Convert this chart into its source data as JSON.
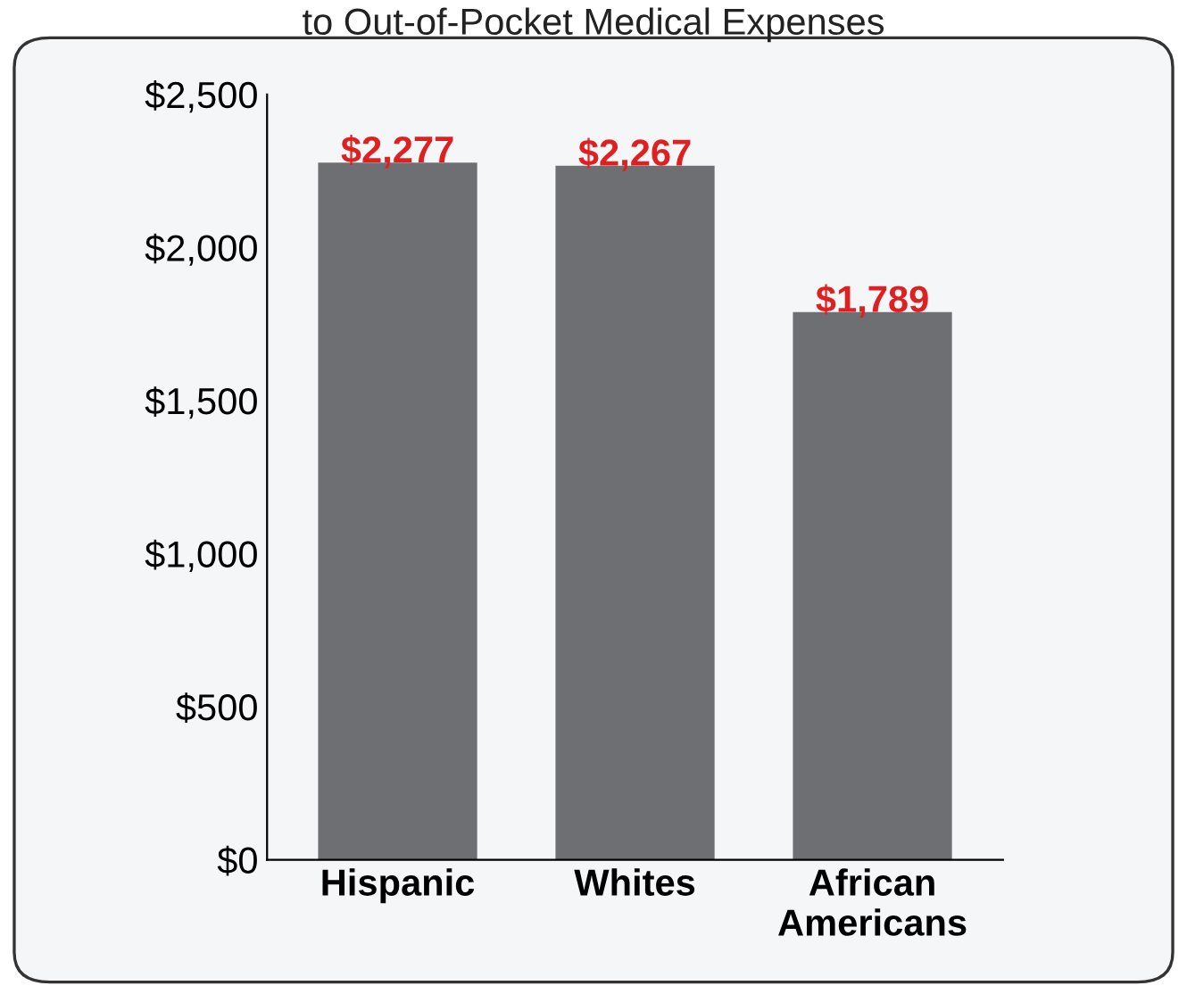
{
  "chart_data": {
    "type": "bar",
    "title": "to Out-of-Pocket Medical Expenses",
    "categories": [
      "Hispanic",
      "Whites",
      "African\nAmericans"
    ],
    "values": [
      2277,
      2267,
      1789
    ],
    "color": "#6e6f72",
    "value_labels": [
      "$2,277",
      "$2,267",
      "$1,789"
    ],
    "ylim": [
      0,
      2500
    ],
    "yticks": [
      {
        "value": 0,
        "label": "$0"
      },
      {
        "value": 500,
        "label": "$500"
      },
      {
        "value": 1000,
        "label": "$1,000"
      },
      {
        "value": 1500,
        "label": "$1,500"
      },
      {
        "value": 2000,
        "label": "$2,000"
      },
      {
        "value": 2500,
        "label": "$2,500"
      }
    ],
    "legend": false
  }
}
